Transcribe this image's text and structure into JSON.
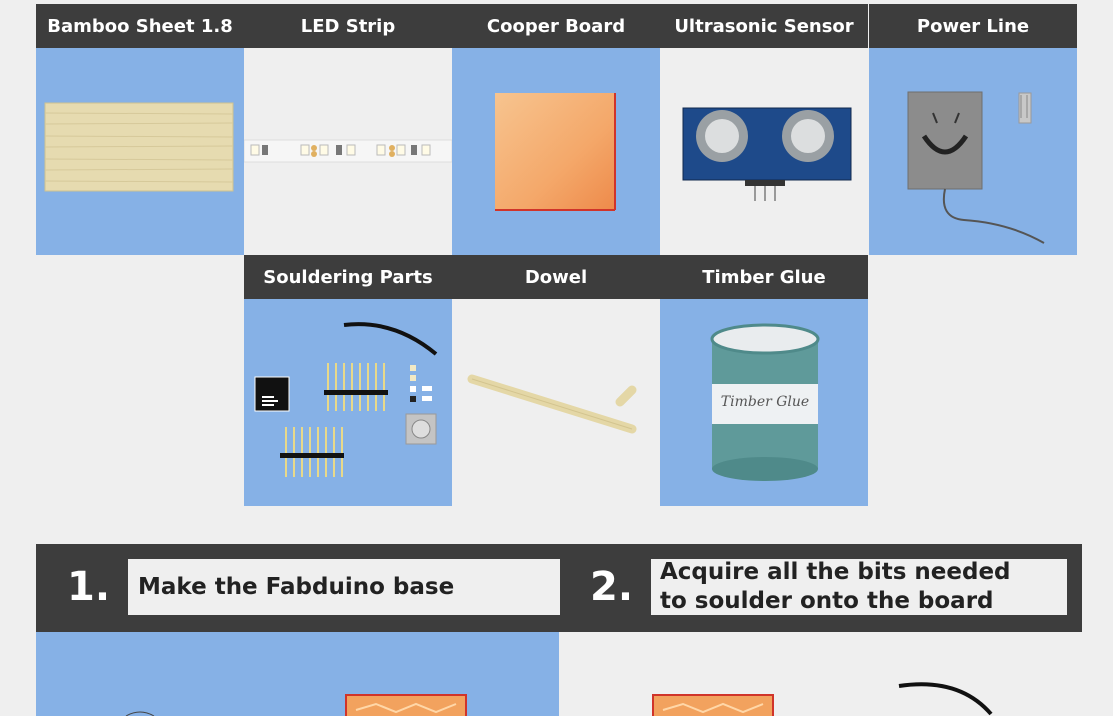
{
  "materials": {
    "row1": [
      {
        "label": "Bamboo Sheet 1.8",
        "icon": "bamboo-sheet-image",
        "bg": "#86b1e6"
      },
      {
        "label": "LED Strip",
        "icon": "led-strip-image",
        "bg": "#efefef"
      },
      {
        "label": "Cooper Board",
        "icon": "copper-board-image",
        "bg": "#86b1e6"
      },
      {
        "label": "Ultrasonic Sensor",
        "icon": "ultrasonic-sensor-image",
        "bg": "#efefef"
      },
      {
        "label": "Power Line",
        "icon": "power-adapter-image",
        "bg": "#86b1e6"
      }
    ],
    "row2": [
      {
        "label": "Souldering Parts",
        "icon": "soldering-parts-image",
        "bg": "#86b1e6"
      },
      {
        "label": "Dowel",
        "icon": "dowel-image",
        "bg": "#efefef"
      },
      {
        "label": "Timber Glue",
        "icon": "timber-glue-image",
        "bg": "#86b1e6",
        "jar_label": "Timber Glue"
      }
    ]
  },
  "steps": [
    {
      "number": "1.",
      "text": "Make the Fabduino base"
    },
    {
      "number": "2.",
      "text": "Acquire all the bits needed\nto soulder onto the board"
    }
  ],
  "colors": {
    "header": "#3d3d3d",
    "blue": "#86b1e6",
    "light": "#efefef"
  }
}
